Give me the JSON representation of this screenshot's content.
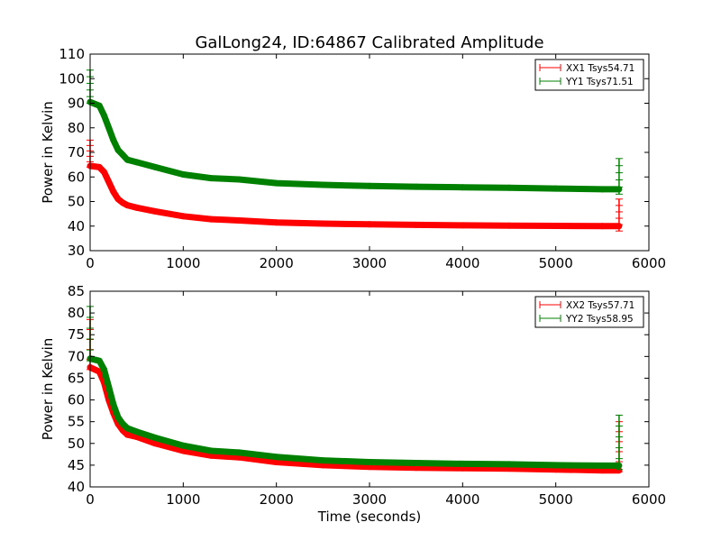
{
  "title": "GalLong24, ID:64867 Calibrated Amplitude",
  "chart_data": [
    {
      "type": "line",
      "xlabel": "",
      "ylabel": "Power in Kelvin",
      "xlim": [
        0,
        6000
      ],
      "ylim": [
        30,
        110
      ],
      "xticks": [
        0,
        1000,
        2000,
        3000,
        4000,
        5000,
        6000
      ],
      "yticks": [
        30,
        40,
        50,
        60,
        70,
        80,
        90,
        100,
        110
      ],
      "grid": false,
      "legend": "top-right",
      "series": [
        {
          "name": "XX1 Tsys54.71",
          "color": "#ff0000",
          "x": [
            0,
            100,
            150,
            200,
            250,
            300,
            350,
            400,
            500,
            700,
            1000,
            1300,
            1600,
            2000,
            2500,
            3000,
            3500,
            4000,
            4500,
            5000,
            5500,
            5680
          ],
          "y": [
            64.5,
            64,
            62,
            58,
            54,
            51,
            49.5,
            48.5,
            47.5,
            46,
            44,
            42.8,
            42.3,
            41.5,
            41,
            40.7,
            40.5,
            40.3,
            40.2,
            40.1,
            40,
            40
          ],
          "spikes": [
            {
              "x": 0,
              "y1": 64,
              "y2": 75
            },
            {
              "x": 5680,
              "y1": 38,
              "y2": 51
            }
          ]
        },
        {
          "name": "YY1 Tsys71.51",
          "color": "#008000",
          "x": [
            0,
            100,
            150,
            200,
            250,
            300,
            350,
            400,
            500,
            700,
            1000,
            1300,
            1600,
            2000,
            2500,
            3000,
            3500,
            4000,
            4500,
            5000,
            5500,
            5680
          ],
          "y": [
            90.5,
            89,
            85,
            80,
            75,
            71,
            69,
            67,
            66,
            64,
            61,
            59.5,
            59,
            57.5,
            56.8,
            56.3,
            56,
            55.8,
            55.6,
            55.3,
            55,
            55
          ],
          "spikes": [
            {
              "x": 0,
              "y1": 90,
              "y2": 103.5
            },
            {
              "x": 5680,
              "y1": 53,
              "y2": 67.5
            }
          ]
        }
      ]
    },
    {
      "type": "line",
      "xlabel": "Time (seconds)",
      "ylabel": "Power in Kelvin",
      "xlim": [
        0,
        6000
      ],
      "ylim": [
        40,
        85
      ],
      "xticks": [
        0,
        1000,
        2000,
        3000,
        4000,
        5000,
        6000
      ],
      "yticks": [
        40,
        45,
        50,
        55,
        60,
        65,
        70,
        75,
        80,
        85
      ],
      "grid": false,
      "legend": "top-right",
      "series": [
        {
          "name": "XX2 Tsys57.71",
          "color": "#ff0000",
          "x": [
            0,
            100,
            150,
            200,
            250,
            300,
            350,
            400,
            500,
            700,
            1000,
            1300,
            1600,
            2000,
            2500,
            3000,
            3500,
            4000,
            4500,
            5000,
            5500,
            5680
          ],
          "y": [
            67.5,
            66.5,
            64,
            60,
            57,
            54.5,
            53,
            52,
            51.5,
            50,
            48.3,
            47.2,
            46.8,
            45.7,
            45,
            44.6,
            44.4,
            44.3,
            44.2,
            44,
            43.8,
            43.8
          ],
          "spikes": [
            {
              "x": 0,
              "y1": 67,
              "y2": 78.5
            },
            {
              "x": 5680,
              "y1": 43.5,
              "y2": 55
            }
          ]
        },
        {
          "name": "YY2 Tsys58.95",
          "color": "#008000",
          "x": [
            0,
            100,
            150,
            200,
            250,
            300,
            350,
            400,
            500,
            700,
            1000,
            1300,
            1600,
            2000,
            2500,
            3000,
            3500,
            4000,
            4500,
            5000,
            5500,
            5680
          ],
          "y": [
            69.5,
            69,
            67,
            63,
            59,
            56,
            54.5,
            53.5,
            52.7,
            51.3,
            49.5,
            48.3,
            47.9,
            46.9,
            46.1,
            45.7,
            45.5,
            45.3,
            45.2,
            45,
            44.9,
            44.9
          ],
          "spikes": [
            {
              "x": 0,
              "y1": 69,
              "y2": 81.5
            },
            {
              "x": 5680,
              "y1": 44,
              "y2": 56.5
            }
          ]
        }
      ]
    }
  ]
}
